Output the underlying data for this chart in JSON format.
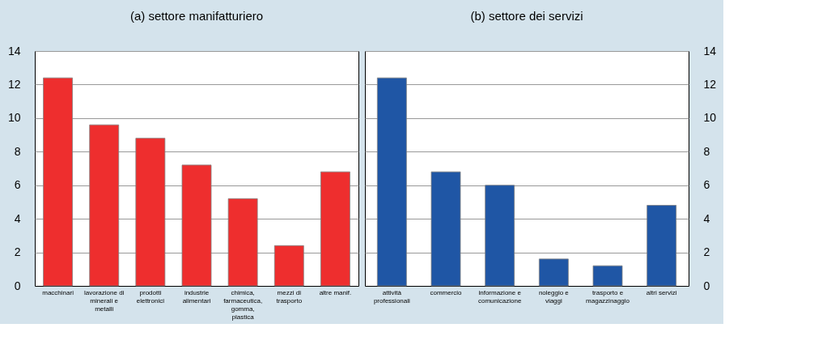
{
  "chart_data": [
    {
      "type": "bar",
      "title": "(a) settore manifatturiero",
      "categories": [
        "macchinari",
        "lavorazione di minerali e metalli",
        "prodotti elettronici",
        "industrie alimentari",
        "chimica, farmaceutica, gomma, plastica",
        "mezzi di trasporto",
        "altre manif."
      ],
      "values": [
        12.4,
        9.6,
        8.8,
        7.2,
        5.2,
        2.4,
        6.8
      ],
      "color": "#ee2e2e",
      "ylim": [
        0,
        14
      ],
      "yticks": [
        0,
        2,
        4,
        6,
        8,
        10,
        12,
        14
      ],
      "grid": "y"
    },
    {
      "type": "bar",
      "title": "(b) settore dei servizi",
      "categories": [
        "attività professionali",
        "commercio",
        "informazione e comunicazione",
        "noleggio e viaggi",
        "trasporto e magazzinaggio",
        "altri servizi"
      ],
      "values": [
        12.4,
        6.8,
        6.0,
        1.6,
        1.2,
        4.8
      ],
      "color": "#1f56a5",
      "ylim": [
        0,
        14
      ],
      "yticks": [
        0,
        2,
        4,
        6,
        8,
        10,
        12,
        14
      ],
      "grid": "y"
    }
  ]
}
